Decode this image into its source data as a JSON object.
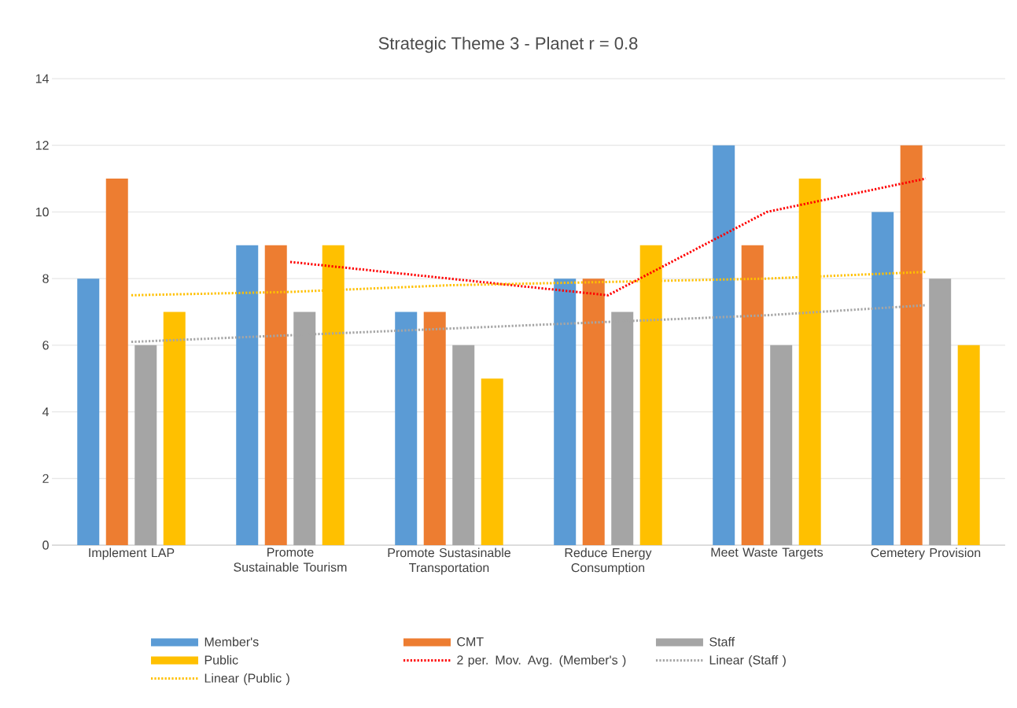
{
  "chart_data": {
    "type": "bar",
    "title": "Strategic Theme 3 - Planet r = 0.8",
    "categories": [
      "Implement LAP",
      "Promote  Sustainable Tourism",
      "Promote Sustasinable Transportation",
      "Reduce Energy Consumption",
      "Meet Waste Targets",
      "Cemetery Provision"
    ],
    "series": [
      {
        "name": "Member's",
        "color": "#5b9bd5",
        "values": [
          8,
          9,
          7,
          8,
          12,
          10
        ]
      },
      {
        "name": "CMT",
        "color": "#ed7d31",
        "values": [
          11,
          9,
          7,
          8,
          9,
          12
        ]
      },
      {
        "name": "Staff",
        "color": "#a5a5a5",
        "values": [
          6,
          7,
          6,
          7,
          6,
          8
        ]
      },
      {
        "name": "Public",
        "color": "#ffc000",
        "values": [
          7,
          9,
          5,
          9,
          11,
          6
        ]
      },
      {
        "name": "2 per. Mov. Avg. (Member's )",
        "type": "line",
        "line_style": "dotted",
        "color": "#ff0000",
        "values": [
          null,
          8.5,
          8,
          7.5,
          10,
          11
        ]
      },
      {
        "name": "Linear (Staff )",
        "type": "line",
        "line_style": "dotted",
        "color": "#a5a5a5",
        "values": [
          6.1,
          6.3,
          6.5,
          6.7,
          6.9,
          7.2
        ]
      },
      {
        "name": "Linear (Public )",
        "type": "line",
        "line_style": "dotted",
        "color": "#ffc000",
        "values": [
          7.5,
          7.6,
          7.8,
          7.9,
          8.0,
          8.2
        ]
      }
    ],
    "ylim": [
      0,
      14
    ],
    "yticks": [
      0,
      2,
      4,
      6,
      8,
      10,
      12,
      14
    ],
    "grid": "y",
    "legend": "bottom",
    "marker": "none"
  }
}
